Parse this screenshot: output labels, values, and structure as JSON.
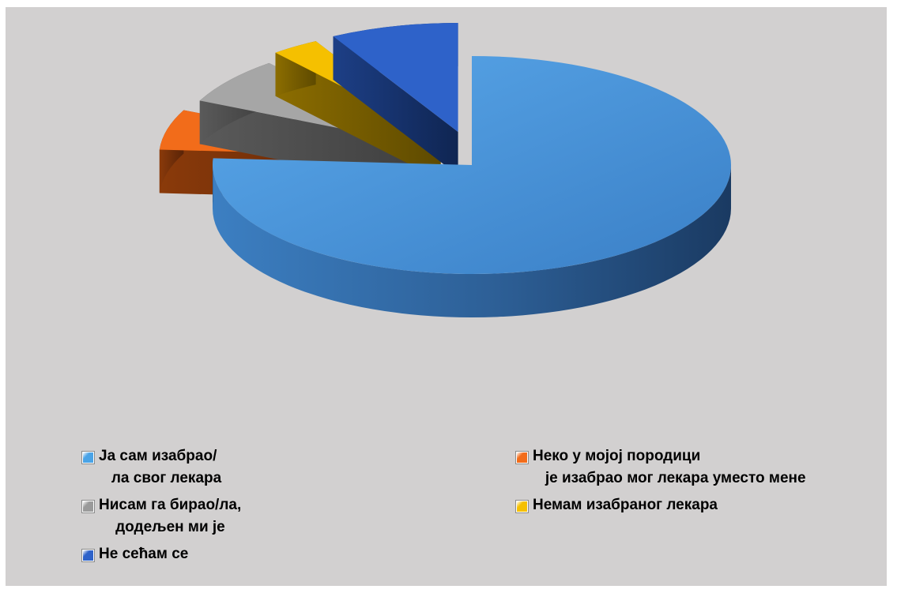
{
  "chart_data": {
    "type": "pie",
    "style": "3d-exploded",
    "slices": [
      {
        "label": "Ја сам изабрао/\n   ла свог лекара",
        "value": 76,
        "color": "#4a9be0"
      },
      {
        "label": "Неко у мојој породици\n   је изабрао мог лекара уместо мене",
        "value": 6,
        "color": "#f26c1a"
      },
      {
        "label": "Нисам га бирао/ла,\n    додељен ми је",
        "value": 7,
        "color": "#a6a6a6"
      },
      {
        "label": "Немам изабраног лекара",
        "value": 3,
        "color": "#f5c000"
      },
      {
        "label": "Не сећам се",
        "value": 8,
        "color": "#2e62c9"
      }
    ],
    "legend_position": "bottom"
  }
}
